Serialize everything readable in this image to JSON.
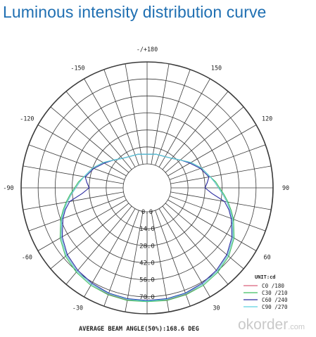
{
  "title": "Luminous intensity distribution curve",
  "watermark": {
    "brand": "okorder",
    "suffix": ".com"
  },
  "chart_data": {
    "type": "polar",
    "title": "Luminous intensity distribution curve",
    "footer": "AVERAGE BEAM ANGLE(50%):168.6 DEG",
    "unit_label": "UNIT:cd",
    "angle_labels": [
      {
        "angle": 180,
        "text": "-/+180"
      },
      {
        "angle": -150,
        "text": "-150"
      },
      {
        "angle": 150,
        "text": "150"
      },
      {
        "angle": -120,
        "text": "-120"
      },
      {
        "angle": 120,
        "text": "120"
      },
      {
        "angle": -90,
        "text": "-90"
      },
      {
        "angle": 90,
        "text": "90"
      },
      {
        "angle": -60,
        "text": "-60"
      },
      {
        "angle": 60,
        "text": "60"
      },
      {
        "angle": -30,
        "text": "-30"
      },
      {
        "angle": 30,
        "text": "30"
      }
    ],
    "radial_labels": [
      "0.0",
      "14.0",
      "28.0",
      "42.0",
      "56.0",
      "70.0"
    ],
    "rlim": [
      0,
      84
    ],
    "grid": true,
    "legend_position": "bottom-right",
    "series": [
      {
        "name": "C0  /180",
        "color": "#d9607a",
        "points": [
          [
            -180,
            8
          ],
          [
            -165,
            9
          ],
          [
            -150,
            10
          ],
          [
            -140,
            12
          ],
          [
            -130,
            16
          ],
          [
            -120,
            22
          ],
          [
            -110,
            28
          ],
          [
            -100,
            33
          ],
          [
            -95,
            36
          ],
          [
            -90,
            39
          ],
          [
            -85,
            43
          ],
          [
            -80,
            47
          ],
          [
            -75,
            51
          ],
          [
            -70,
            55
          ],
          [
            -60,
            62
          ],
          [
            -50,
            67
          ],
          [
            -40,
            70
          ],
          [
            -30,
            72
          ],
          [
            -20,
            73.5
          ],
          [
            -10,
            74
          ],
          [
            0,
            74
          ],
          [
            10,
            74
          ],
          [
            20,
            73.5
          ],
          [
            30,
            72
          ],
          [
            40,
            70
          ],
          [
            50,
            67
          ],
          [
            60,
            62
          ],
          [
            70,
            55
          ],
          [
            75,
            51
          ],
          [
            80,
            47
          ],
          [
            85,
            43
          ],
          [
            90,
            39
          ],
          [
            95,
            36
          ],
          [
            100,
            33
          ],
          [
            110,
            28
          ],
          [
            120,
            22
          ],
          [
            130,
            16
          ],
          [
            140,
            12
          ],
          [
            150,
            10
          ],
          [
            165,
            9
          ],
          [
            180,
            8
          ]
        ]
      },
      {
        "name": "C30 /210",
        "color": "#3fbf5f",
        "points": [
          [
            -180,
            8
          ],
          [
            -165,
            9
          ],
          [
            -150,
            10
          ],
          [
            -140,
            12
          ],
          [
            -130,
            16
          ],
          [
            -120,
            22
          ],
          [
            -110,
            28
          ],
          [
            -100,
            33
          ],
          [
            -95,
            37
          ],
          [
            -90,
            40
          ],
          [
            -85,
            44
          ],
          [
            -80,
            48
          ],
          [
            -75,
            52
          ],
          [
            -70,
            56
          ],
          [
            -60,
            63
          ],
          [
            -50,
            68
          ],
          [
            -40,
            71
          ],
          [
            -30,
            73
          ],
          [
            -20,
            74
          ],
          [
            -10,
            74.5
          ],
          [
            0,
            74
          ],
          [
            10,
            74.5
          ],
          [
            20,
            74
          ],
          [
            30,
            73
          ],
          [
            40,
            71
          ],
          [
            50,
            68
          ],
          [
            60,
            63
          ],
          [
            70,
            56
          ],
          [
            75,
            52
          ],
          [
            80,
            48
          ],
          [
            85,
            44
          ],
          [
            90,
            40
          ],
          [
            95,
            37
          ],
          [
            100,
            33
          ],
          [
            110,
            28
          ],
          [
            120,
            22
          ],
          [
            130,
            16
          ],
          [
            140,
            12
          ],
          [
            150,
            10
          ],
          [
            165,
            9
          ],
          [
            180,
            8
          ]
        ]
      },
      {
        "name": "C60 /240",
        "color": "#2a2aa0",
        "points": [
          [
            -180,
            8
          ],
          [
            -165,
            9
          ],
          [
            -150,
            10
          ],
          [
            -140,
            12
          ],
          [
            -130,
            16
          ],
          [
            -120,
            21
          ],
          [
            -110,
            27
          ],
          [
            -100,
            32
          ],
          [
            -95,
            30
          ],
          [
            -90,
            28
          ],
          [
            -85,
            34
          ],
          [
            -80,
            45
          ],
          [
            -75,
            50
          ],
          [
            -70,
            54
          ],
          [
            -60,
            61
          ],
          [
            -50,
            66
          ],
          [
            -40,
            69
          ],
          [
            -30,
            71
          ],
          [
            -20,
            72.5
          ],
          [
            -10,
            73
          ],
          [
            0,
            73
          ],
          [
            10,
            73
          ],
          [
            20,
            72.5
          ],
          [
            30,
            71
          ],
          [
            40,
            69
          ],
          [
            50,
            66
          ],
          [
            60,
            61
          ],
          [
            70,
            54
          ],
          [
            75,
            50
          ],
          [
            80,
            45
          ],
          [
            85,
            34
          ],
          [
            90,
            28
          ],
          [
            95,
            30
          ],
          [
            100,
            32
          ],
          [
            110,
            27
          ],
          [
            120,
            21
          ],
          [
            130,
            16
          ],
          [
            140,
            12
          ],
          [
            150,
            10
          ],
          [
            165,
            9
          ],
          [
            180,
            8
          ]
        ]
      },
      {
        "name": "C90 /270",
        "color": "#5ad0e0",
        "points": [
          [
            -180,
            8
          ],
          [
            -165,
            9
          ],
          [
            -150,
            10
          ],
          [
            -140,
            12
          ],
          [
            -130,
            16
          ],
          [
            -120,
            22
          ],
          [
            -110,
            28
          ],
          [
            -100,
            33
          ],
          [
            -95,
            36
          ],
          [
            -90,
            39
          ],
          [
            -85,
            43
          ],
          [
            -80,
            47
          ],
          [
            -75,
            51
          ],
          [
            -70,
            55
          ],
          [
            -60,
            62
          ],
          [
            -50,
            67
          ],
          [
            -40,
            70
          ],
          [
            -30,
            72
          ],
          [
            -20,
            73
          ],
          [
            -10,
            73.5
          ],
          [
            0,
            73.5
          ],
          [
            10,
            73.5
          ],
          [
            20,
            73
          ],
          [
            30,
            72
          ],
          [
            40,
            70
          ],
          [
            50,
            67
          ],
          [
            60,
            62
          ],
          [
            70,
            55
          ],
          [
            75,
            51
          ],
          [
            80,
            47
          ],
          [
            85,
            43
          ],
          [
            90,
            39
          ],
          [
            95,
            36
          ],
          [
            100,
            33
          ],
          [
            110,
            28
          ],
          [
            120,
            22
          ],
          [
            130,
            16
          ],
          [
            140,
            12
          ],
          [
            150,
            10
          ],
          [
            165,
            9
          ],
          [
            180,
            8
          ]
        ]
      }
    ]
  }
}
